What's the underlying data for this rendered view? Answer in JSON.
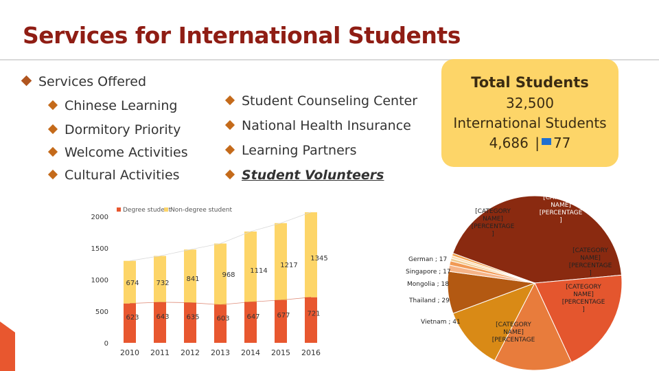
{
  "title": "Services for International Students",
  "services": {
    "heading": "Services Offered",
    "col1": [
      "Chinese Learning",
      "Dormitory Priority",
      "Welcome Activities",
      "Cultural Activities"
    ],
    "col2": [
      "Student Counseling Center",
      "National Health Insurance",
      "Learning Partners",
      "Student Volunteers"
    ]
  },
  "total": {
    "heading": "Total Students",
    "count": "32,500",
    "intl_label": "International Students",
    "intl_count": "4,686",
    "flag_count": "77"
  },
  "colors": {
    "degree": "#e8572f",
    "non_degree": "#fdd568",
    "title": "#8f1d14"
  },
  "chart_data": [
    {
      "type": "bar",
      "stacked": true,
      "categories": [
        "2010",
        "2011",
        "2012",
        "2013",
        "2014",
        "2015",
        "2016"
      ],
      "series": [
        {
          "name": "Degree student",
          "values": [
            623,
            643,
            635,
            603,
            647,
            677,
            721
          ]
        },
        {
          "name": "Non-degree student",
          "values": [
            674,
            732,
            841,
            968,
            1114,
            1217,
            1345
          ]
        }
      ],
      "yticks": [
        "0",
        "500",
        "1000",
        "1500",
        "2000"
      ],
      "ylim": [
        0,
        2000
      ],
      "legend": "top-left",
      "grid": false
    },
    {
      "type": "pie",
      "slices": [
        {
          "label": "[CATEGORY NAME] [PERCENTAGE]",
          "value": 1540,
          "color": "#8a2a10"
        },
        {
          "label": "[CATEGORY NAME] [PERCENTAGE]",
          "value": 700,
          "color": "#e4562e"
        },
        {
          "label": "[CATEGORY NAME] [PERCENTAGE]",
          "value": 520,
          "color": "#e87c3c"
        },
        {
          "label": "[CATEGORY NAME] [PERCENTAGE]",
          "value": 420,
          "color": "#d98a16"
        },
        {
          "label": "[CATEGORY NAME] [PERCENTAGE]",
          "value": 280,
          "color": "#b35912"
        },
        {
          "label": "Vietnam",
          "value": 41,
          "color": "#f6b488"
        },
        {
          "label": "Thailand",
          "value": 29,
          "color": "#f19a55"
        },
        {
          "label": "Mongolia",
          "value": 18,
          "color": "#f0c98d"
        },
        {
          "label": "Singapore",
          "value": 17,
          "color": "#fbdcb0"
        },
        {
          "label": "German",
          "value": 17,
          "color": "#f4a24c"
        }
      ]
    }
  ]
}
